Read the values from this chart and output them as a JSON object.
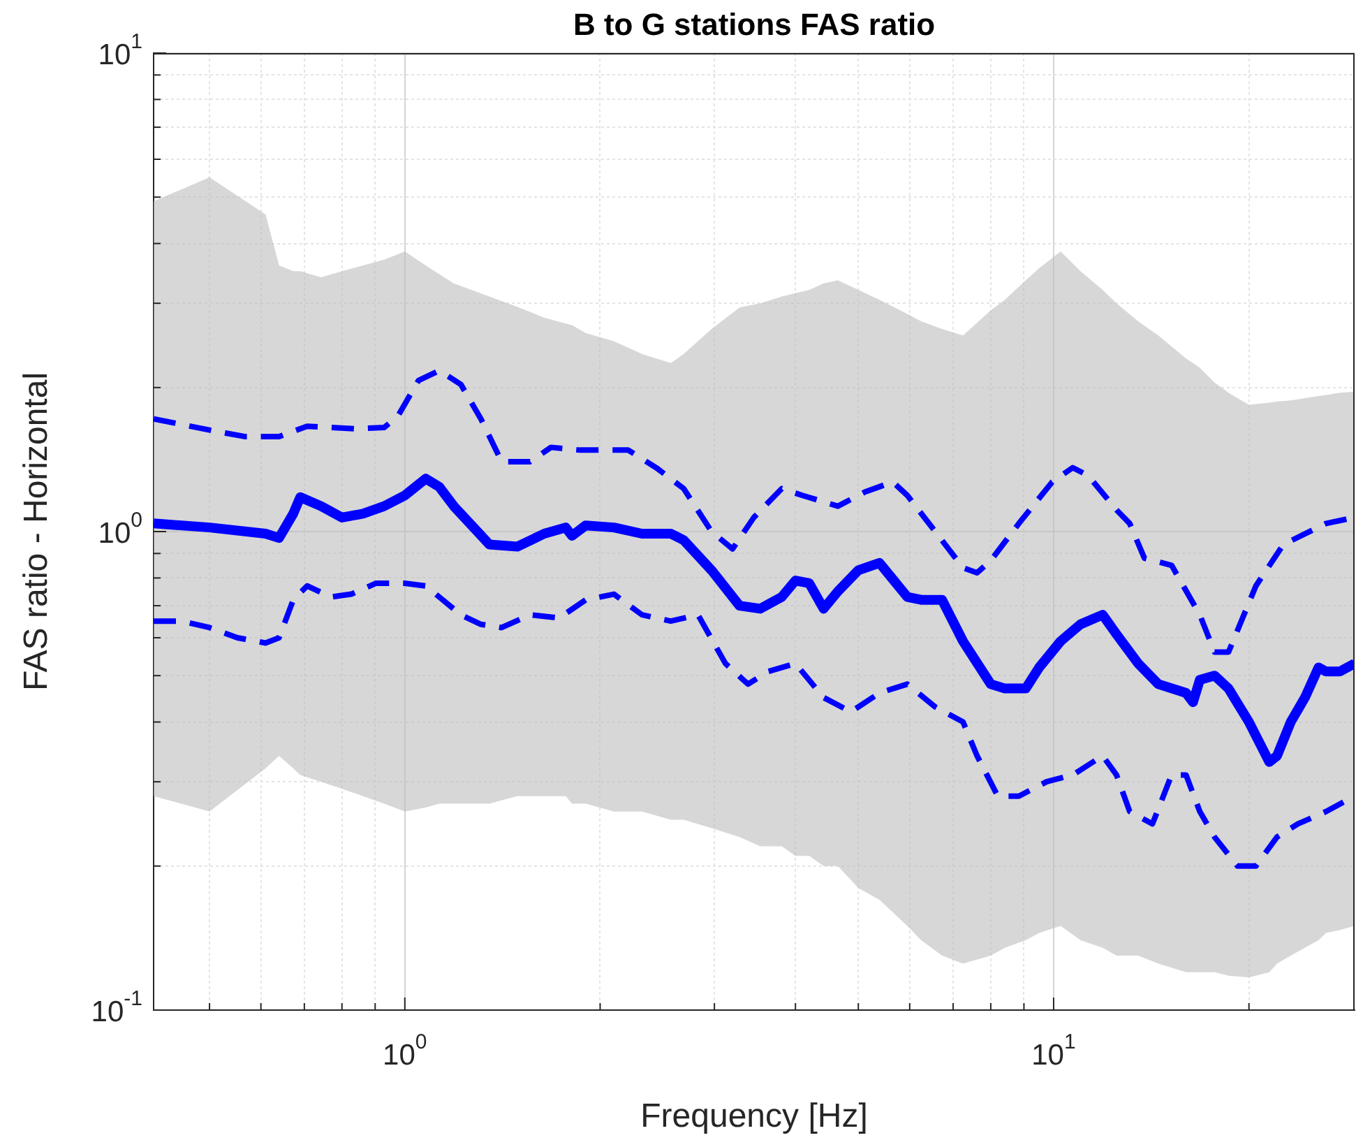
{
  "chart_data": {
    "type": "line",
    "title": "B to G stations FAS ratio",
    "xlabel": "Frequency [Hz]",
    "ylabel": "FAS ratio - Horizontal",
    "log": "xy",
    "grid": true,
    "legend": false,
    "marker": "none",
    "xlim": [
      0.41,
      29.1
    ],
    "ylim": [
      0.1,
      10
    ],
    "xticks": [
      {
        "value": 0.5,
        "label": null
      },
      {
        "value": 0.6,
        "label": null
      },
      {
        "value": 0.7,
        "label": null
      },
      {
        "value": 0.8,
        "label": null
      },
      {
        "value": 0.9,
        "label": null
      },
      {
        "value": 1,
        "label": "10$^{0}$"
      },
      {
        "value": 2,
        "label": null
      },
      {
        "value": 3,
        "label": null
      },
      {
        "value": 4,
        "label": null
      },
      {
        "value": 5,
        "label": null
      },
      {
        "value": 6,
        "label": null
      },
      {
        "value": 7,
        "label": null
      },
      {
        "value": 8,
        "label": null
      },
      {
        "value": 9,
        "label": null
      },
      {
        "value": 10,
        "label": "10$^{1}$"
      },
      {
        "value": 20,
        "label": null
      }
    ],
    "yticks": [
      {
        "value": 0.1,
        "label": "10$^{-1}$"
      },
      {
        "value": 0.2,
        "label": null
      },
      {
        "value": 0.3,
        "label": null
      },
      {
        "value": 0.4,
        "label": null
      },
      {
        "value": 0.5,
        "label": null
      },
      {
        "value": 0.6,
        "label": null
      },
      {
        "value": 0.7,
        "label": null
      },
      {
        "value": 0.8,
        "label": null
      },
      {
        "value": 0.9,
        "label": null
      },
      {
        "value": 1,
        "label": "10$^{0}$"
      },
      {
        "value": 2,
        "label": null
      },
      {
        "value": 3,
        "label": null
      },
      {
        "value": 4,
        "label": null
      },
      {
        "value": 5,
        "label": null
      },
      {
        "value": 6,
        "label": null
      },
      {
        "value": 7,
        "label": null
      },
      {
        "value": 8,
        "label": null
      },
      {
        "value": 9,
        "label": null
      },
      {
        "value": 10,
        "label": "10$^{1}$"
      }
    ],
    "series": [
      {
        "color": "#0000ff",
        "line_style": "dashed",
        "x": [
          0.41,
          0.5,
          0.566,
          0.64,
          0.707,
          0.841,
          0.929,
          0.975,
          1.05,
          1.13,
          1.22,
          1.31,
          1.41,
          1.56,
          1.68,
          1.86,
          2.21,
          2.44,
          2.69,
          2.97,
          3.2,
          3.45,
          3.81,
          4.1,
          4.65,
          5.12,
          5.65,
          5.95,
          6.57,
          7.25,
          7.62,
          8.0,
          8.84,
          9.95,
          10.7,
          11.3,
          12.5,
          13.1,
          13.8,
          15.2,
          16.8,
          17.7,
          18.6,
          20.5,
          22.6,
          26.3,
          29.1
        ],
        "values": [
          1.72,
          1.63,
          1.58,
          1.58,
          1.66,
          1.64,
          1.65,
          1.74,
          2.07,
          2.17,
          2.03,
          1.72,
          1.4,
          1.4,
          1.5,
          1.48,
          1.48,
          1.36,
          1.23,
          1.0,
          0.92,
          1.07,
          1.23,
          1.19,
          1.13,
          1.21,
          1.27,
          1.19,
          1.0,
          0.84,
          0.82,
          0.87,
          1.04,
          1.27,
          1.36,
          1.31,
          1.11,
          1.04,
          0.88,
          0.85,
          0.67,
          0.56,
          0.56,
          0.77,
          0.94,
          1.04,
          1.07
        ]
      },
      {
        "color": "#0000ff",
        "line_style": "dashed",
        "x": [
          0.41,
          0.453,
          0.5,
          0.552,
          0.61,
          0.64,
          0.673,
          0.707,
          0.77,
          0.827,
          0.903,
          1.0,
          1.077,
          1.22,
          1.31,
          1.41,
          1.56,
          1.73,
          1.9,
          2.1,
          2.32,
          2.57,
          2.83,
          3.12,
          3.38,
          3.63,
          4.0,
          4.42,
          4.87,
          5.39,
          5.95,
          6.57,
          7.25,
          7.62,
          8.2,
          8.84,
          9.75,
          10.7,
          11.9,
          12.5,
          13.1,
          14.2,
          15.2,
          16.0,
          16.8,
          17.7,
          19.2,
          20.5,
          22.1,
          23.8,
          26.3,
          29.1
        ],
        "values": [
          0.65,
          0.65,
          0.63,
          0.6,
          0.585,
          0.6,
          0.72,
          0.77,
          0.73,
          0.74,
          0.78,
          0.78,
          0.77,
          0.67,
          0.64,
          0.63,
          0.67,
          0.66,
          0.72,
          0.74,
          0.67,
          0.65,
          0.67,
          0.53,
          0.48,
          0.51,
          0.53,
          0.45,
          0.42,
          0.46,
          0.48,
          0.43,
          0.4,
          0.34,
          0.28,
          0.28,
          0.3,
          0.31,
          0.34,
          0.31,
          0.26,
          0.245,
          0.31,
          0.31,
          0.26,
          0.23,
          0.2,
          0.2,
          0.23,
          0.245,
          0.26,
          0.28
        ]
      },
      {
        "color": "#0000ff",
        "line_style": "solid",
        "x": [
          0.41,
          0.5,
          0.61,
          0.64,
          0.673,
          0.69,
          0.743,
          0.8,
          0.862,
          0.929,
          1.0,
          1.077,
          1.13,
          1.19,
          1.35,
          1.49,
          1.64,
          1.77,
          1.81,
          1.9,
          2.1,
          2.32,
          2.57,
          2.69,
          2.97,
          3.28,
          3.53,
          3.81,
          4.0,
          4.2,
          4.42,
          4.65,
          5.0,
          5.39,
          5.95,
          6.25,
          6.73,
          7.25,
          8.0,
          8.41,
          9.06,
          9.5,
          10.25,
          11.0,
          11.9,
          12.5,
          13.5,
          14.5,
          16.0,
          16.4,
          16.8,
          17.7,
          18.6,
          20.0,
          21.5,
          22.1,
          23.2,
          24.4,
          25.6,
          26.3,
          27.6,
          29.1
        ],
        "values": [
          1.04,
          1.02,
          0.99,
          0.97,
          1.09,
          1.18,
          1.13,
          1.07,
          1.09,
          1.13,
          1.19,
          1.29,
          1.24,
          1.13,
          0.94,
          0.93,
          0.99,
          1.02,
          0.98,
          1.03,
          1.02,
          0.99,
          0.99,
          0.96,
          0.83,
          0.7,
          0.69,
          0.73,
          0.79,
          0.78,
          0.69,
          0.75,
          0.83,
          0.86,
          0.73,
          0.72,
          0.72,
          0.59,
          0.48,
          0.47,
          0.47,
          0.52,
          0.59,
          0.64,
          0.67,
          0.61,
          0.53,
          0.48,
          0.46,
          0.44,
          0.49,
          0.5,
          0.47,
          0.4,
          0.33,
          0.34,
          0.4,
          0.45,
          0.52,
          0.51,
          0.51,
          0.53
        ],
        "lower": [
          0.28,
          0.26,
          0.32,
          0.34,
          0.32,
          0.31,
          0.3,
          0.29,
          0.28,
          0.27,
          0.26,
          0.265,
          0.27,
          0.27,
          0.27,
          0.28,
          0.28,
          0.28,
          0.27,
          0.27,
          0.26,
          0.26,
          0.25,
          0.25,
          0.24,
          0.23,
          0.22,
          0.22,
          0.21,
          0.21,
          0.2,
          0.2,
          0.18,
          0.17,
          0.15,
          0.14,
          0.13,
          0.125,
          0.13,
          0.135,
          0.14,
          0.145,
          0.15,
          0.14,
          0.135,
          0.13,
          0.13,
          0.125,
          0.12,
          0.12,
          0.12,
          0.12,
          0.118,
          0.117,
          0.12,
          0.125,
          0.13,
          0.135,
          0.14,
          0.145,
          0.147,
          0.15
        ],
        "upper": [
          4.9,
          5.5,
          4.6,
          3.6,
          3.5,
          3.5,
          3.4,
          3.5,
          3.6,
          3.7,
          3.85,
          3.6,
          3.45,
          3.3,
          3.1,
          2.95,
          2.8,
          2.72,
          2.7,
          2.6,
          2.5,
          2.35,
          2.25,
          2.35,
          2.65,
          2.94,
          3.0,
          3.1,
          3.15,
          3.2,
          3.3,
          3.35,
          3.2,
          3.05,
          2.85,
          2.75,
          2.65,
          2.57,
          2.9,
          3.05,
          3.35,
          3.55,
          3.85,
          3.5,
          3.2,
          3.0,
          2.75,
          2.57,
          2.3,
          2.25,
          2.2,
          2.05,
          1.95,
          1.84,
          1.86,
          1.87,
          1.88,
          1.9,
          1.92,
          1.93,
          1.95,
          1.96
        ]
      }
    ]
  }
}
